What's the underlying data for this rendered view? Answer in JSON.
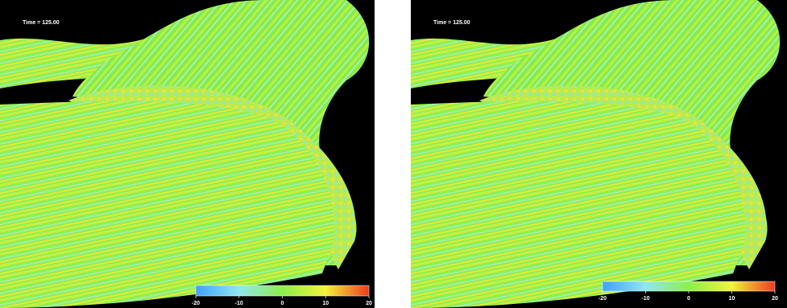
{
  "panels": [
    {
      "time_label": "Time = 125.00",
      "colorbar": {
        "range": [
          -20,
          20
        ],
        "ticks": [
          -20,
          -10,
          0,
          10,
          20
        ]
      }
    },
    {
      "time_label": "Time = 125.00",
      "colorbar": {
        "range": [
          -20,
          20
        ],
        "ticks": [
          -20,
          -10,
          0,
          10,
          20
        ]
      }
    }
  ]
}
